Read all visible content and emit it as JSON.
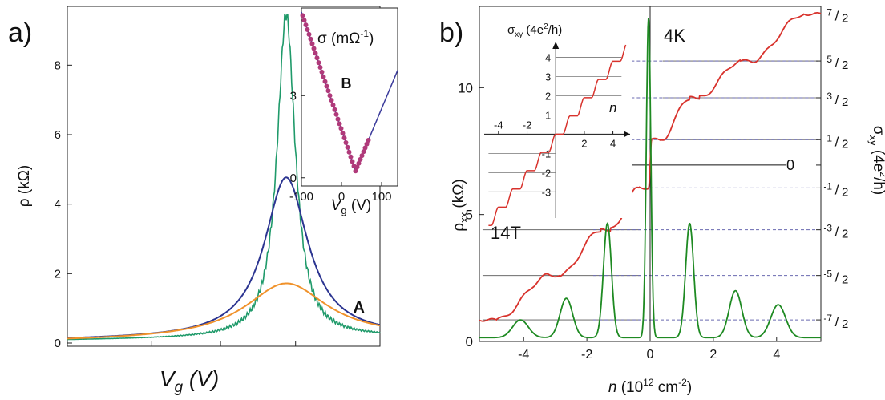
{
  "chart_data": [
    {
      "id": "a_main",
      "type": "line",
      "panel_label": "a)",
      "annotation": "A",
      "xlabel_sym": "V",
      "xlabel_sub": "g",
      "xlabel_unit": " (V)",
      "ylabel": "ρ (kΩ)",
      "ylim": [
        0,
        9.6
      ],
      "xlim": [
        0,
        1
      ],
      "y_ticks": [
        "0",
        "2",
        "4",
        "6",
        "8"
      ],
      "y_tick_values": [
        0,
        2,
        4,
        6,
        8
      ],
      "grid": false,
      "series": [
        {
          "color": "#1f9a6a",
          "peak": 9.4,
          "x0": 0.7,
          "gamma": 0.035,
          "bg": 0.08
        },
        {
          "color": "#2c3591",
          "peak": 4.7,
          "x0": 0.7,
          "gamma": 0.085,
          "bg": 0.08
        },
        {
          "color": "#f0922b",
          "peak": 1.65,
          "x0": 0.7,
          "gamma": 0.16,
          "bg": 0.05
        }
      ]
    },
    {
      "id": "a_inset",
      "type": "scatter",
      "annotation": "B",
      "title_sym": "σ",
      "title_unit": "(mΩ",
      "title_sup": "-1",
      "title_end": ")",
      "xlabel_sym": "V",
      "xlabel_sub": "g",
      "xlabel_unit": " (V)",
      "xlim": [
        -100,
        140
      ],
      "ylim": [
        -0.3,
        6.2
      ],
      "x_ticks": [
        "-100",
        "0",
        "100"
      ],
      "x_tick_values": [
        -100,
        0,
        100
      ],
      "y_ticks": [
        "0",
        "3"
      ],
      "y_tick_values": [
        0,
        3
      ],
      "vertex_x": 35,
      "vertex_y": 0.25,
      "left_slope": -0.043,
      "right_slope": 0.035,
      "point_color": "#b03a7a",
      "line_color": "#3b3b9b"
    },
    {
      "id": "b_main",
      "type": "line",
      "panel_label": "b)",
      "temperature_label": "4K",
      "field_label": "14T",
      "xlabel_sym": "n",
      "xlabel_unit": " (10",
      "xlabel_sup": "12",
      "xlabel_end": " cm",
      "xlabel_sup2": "-2",
      "xlabel_close": ")",
      "ylabel_left_sym": "ρ",
      "ylabel_left_sub": "xx",
      "ylabel_left_unit": " (kΩ)",
      "ylabel_right_sym": "σ",
      "ylabel_right_sub": "xy",
      "ylabel_right_unit": " (4e",
      "ylabel_right_sup": "2",
      "ylabel_right_end": "/h)",
      "xlim": [
        -5.4,
        5.4
      ],
      "ylim": [
        0,
        13.2
      ],
      "x_ticks": [
        "-4",
        "-2",
        "0",
        "2",
        "4"
      ],
      "x_tick_values": [
        -4,
        -2,
        0,
        2,
        4
      ],
      "y_ticks": [
        "0",
        "5",
        "10"
      ],
      "y_tick_values": [
        0,
        5,
        10
      ],
      "right_ticks": [
        {
          "num": "7",
          "den": "2",
          "y": 12.9
        },
        {
          "num": "5",
          "den": "2",
          "y": 11.05
        },
        {
          "num": "3",
          "den": "2",
          "y": 9.6
        },
        {
          "num": "1",
          "den": "2",
          "y": 7.95
        },
        {
          "plain": "0",
          "y": 6.95
        },
        {
          "num": "-1",
          "den": "2",
          "y": 6.05
        },
        {
          "num": "-3",
          "den": "2",
          "y": 4.4
        },
        {
          "num": "-5",
          "den": "2",
          "y": 2.6
        },
        {
          "num": "-7",
          "den": "2",
          "y": 0.85
        }
      ],
      "sigma_plateaus": [
        {
          "y": 0.85,
          "from": -5.4,
          "to": -4.85
        },
        {
          "y": 2.6,
          "from": -3.2,
          "to": -2.85
        },
        {
          "y": 4.4,
          "from": -1.55,
          "to": -1.25
        },
        {
          "y": 6.05,
          "from": -0.35,
          "to": -0.05
        },
        {
          "y": 7.95,
          "from": 0.05,
          "to": 0.35
        },
        {
          "y": 9.6,
          "from": 1.25,
          "to": 1.55
        },
        {
          "y": 11.05,
          "from": 2.85,
          "to": 3.2
        },
        {
          "y": 12.9,
          "from": 4.85,
          "to": 5.4
        }
      ],
      "rho_peaks": [
        {
          "x": -4.1,
          "h": 0.7,
          "w": 0.35
        },
        {
          "x": -2.65,
          "h": 1.55,
          "w": 0.28
        },
        {
          "x": -1.35,
          "h": 4.5,
          "w": 0.18
        },
        {
          "x": -0.05,
          "h": 12.6,
          "w": 0.1
        },
        {
          "x": 1.25,
          "h": 4.5,
          "w": 0.18
        },
        {
          "x": 2.7,
          "h": 1.85,
          "w": 0.28
        },
        {
          "x": 4.05,
          "h": 1.3,
          "w": 0.33
        }
      ],
      "sigma_color": "#d8322c",
      "rho_color": "#1e8a22"
    },
    {
      "id": "b_inset",
      "type": "line",
      "title_sym": "σ",
      "title_sub": "xy",
      "title_unit": " (4e",
      "title_sup": "2",
      "title_end": "/h)",
      "xlabel_sym": "n",
      "x_ticks": [
        "-4",
        "-2",
        "2",
        "4"
      ],
      "x_tick_values": [
        -4,
        -2,
        2,
        4
      ],
      "y_ticks": [
        "4",
        "3",
        "2",
        "1",
        "-1",
        "-2",
        "-3"
      ],
      "y_tick_values": [
        4,
        3,
        2,
        1,
        -1,
        -2,
        -3
      ],
      "xlim": [
        -5,
        5.2
      ],
      "ylim": [
        -4.2,
        4.9
      ],
      "line_color": "#d8322c"
    }
  ]
}
